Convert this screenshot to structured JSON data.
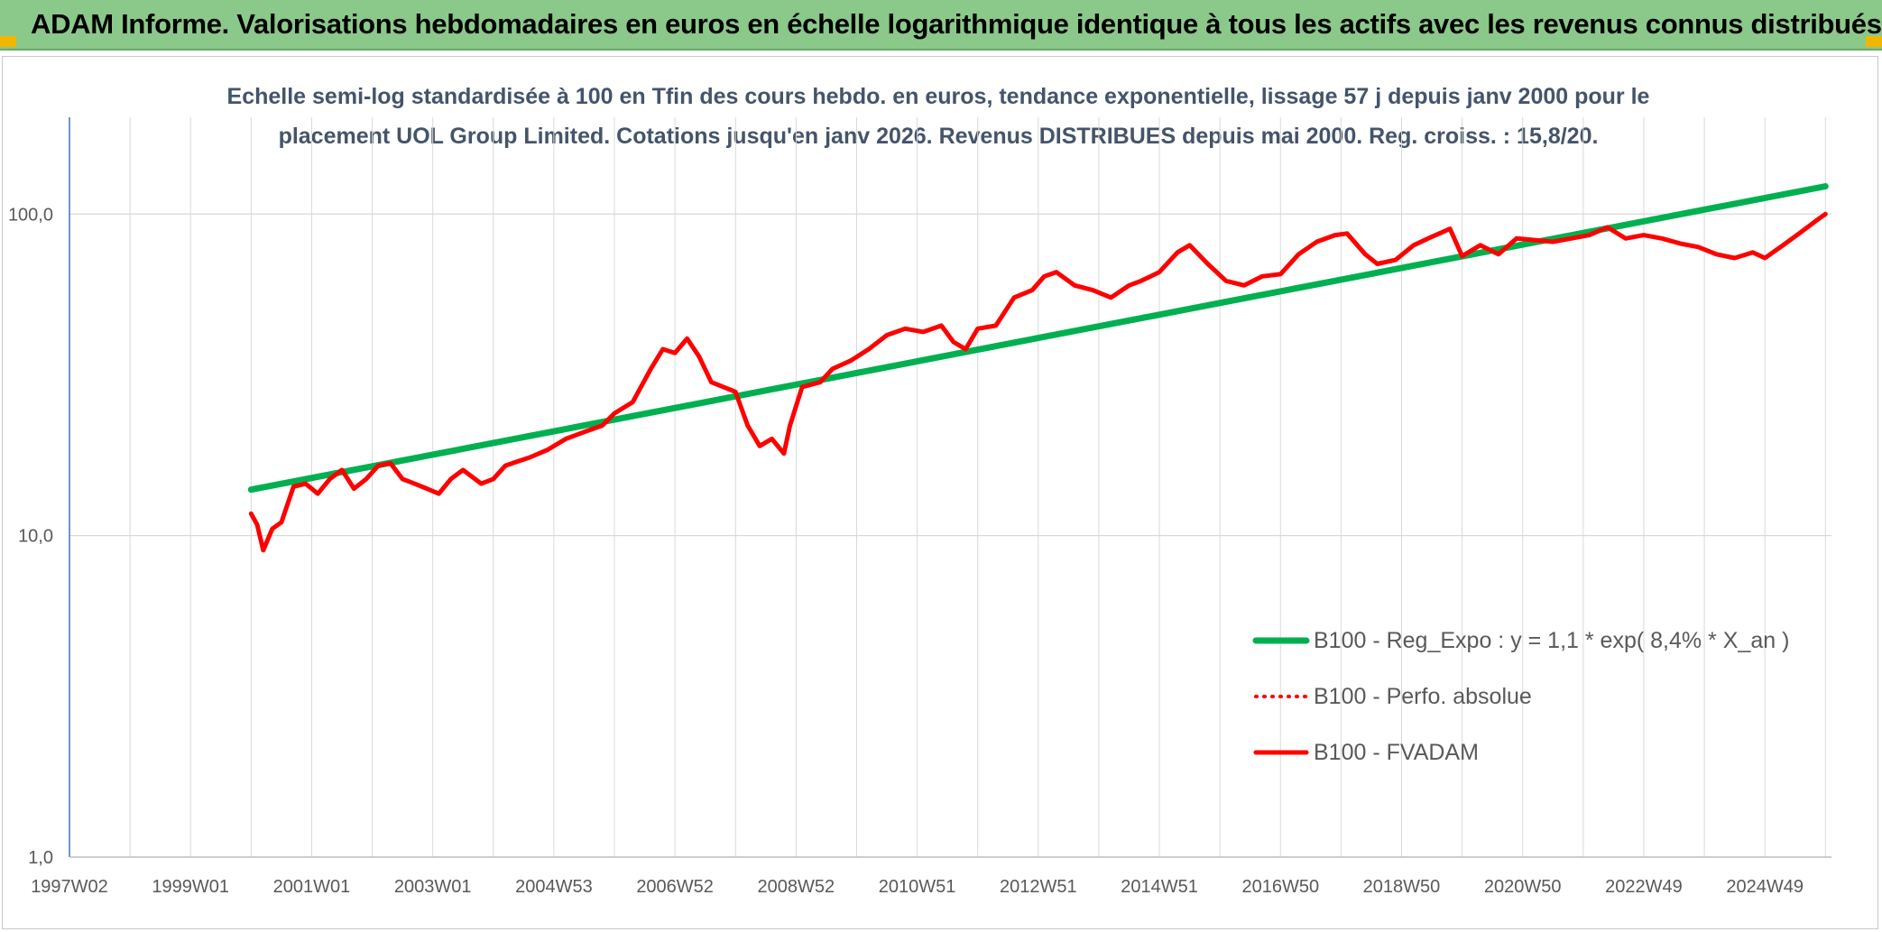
{
  "header": {
    "title": "ADAM Informe. Valorisations hebdomadaires en euros en échelle logarithmique identique à tous les actifs avec les revenus connus distribués"
  },
  "colors": {
    "header_bg": "#8bc98a",
    "regression": "#00b050",
    "series": "#ff0000",
    "corner": "#f2b600"
  },
  "chart_data": {
    "type": "line",
    "title_lines": [
      "Echelle semi-log standardisée à 100 en Tfin des cours hebdo. en euros, tendance exponentielle, lissage 57 j depuis janv 2000 pour le",
      "placement UOL Group Limited. Cotations jusqu'en janv 2026. Revenus DISTRIBUES depuis mai 2000. Reg. croiss. : 15,8/20."
    ],
    "y_scale": "log",
    "ylim": [
      1,
      200
    ],
    "y_ticks": [
      1,
      10,
      100
    ],
    "y_tick_labels": [
      "1,0",
      "10,0",
      "100,0"
    ],
    "xlim": [
      1997.0,
      2026.1
    ],
    "x_ticks": [
      1997.0,
      1999.0,
      2001.0,
      2003.0,
      2005.0,
      2007.0,
      2009.0,
      2011.0,
      2013.0,
      2015.0,
      2017.0,
      2019.0,
      2021.0,
      2023.0,
      2025.0
    ],
    "x_tick_labels": [
      "1997W02",
      "1999W01",
      "2001W01",
      "2003W01",
      "2004W53",
      "2006W52",
      "2008W52",
      "2010W51",
      "2012W51",
      "2014W51",
      "2016W50",
      "2018W50",
      "2020W50",
      "2022W49",
      "2024W49"
    ],
    "grid": true,
    "legend_position": "bottom-right",
    "series": [
      {
        "name": "B100 - Reg_Expo : y = 1,1 * exp( 8,4% *  X_an )",
        "style": "solid-thick",
        "color": "#00b050",
        "x": [
          2000.0,
          2026.0
        ],
        "y": [
          13.9,
          122
        ]
      },
      {
        "name": "B100 - Perfo. absolue",
        "style": "dotted",
        "color": "#ff0000",
        "x": [],
        "y": []
      },
      {
        "name": "B100 - FVADAM",
        "style": "solid",
        "color": "#ff0000",
        "x": [
          2000.0,
          2000.1,
          2000.2,
          2000.35,
          2000.5,
          2000.7,
          2000.9,
          2001.1,
          2001.3,
          2001.5,
          2001.7,
          2001.9,
          2002.1,
          2002.3,
          2002.5,
          2002.7,
          2002.9,
          2003.1,
          2003.3,
          2003.5,
          2003.8,
          2004.0,
          2004.2,
          2004.4,
          2004.6,
          2004.9,
          2005.2,
          2005.5,
          2005.8,
          2006.0,
          2006.3,
          2006.6,
          2006.8,
          2007.0,
          2007.2,
          2007.4,
          2007.6,
          2007.8,
          2008.0,
          2008.2,
          2008.4,
          2008.6,
          2008.8,
          2008.9,
          2009.1,
          2009.4,
          2009.6,
          2009.9,
          2010.2,
          2010.5,
          2010.8,
          2011.1,
          2011.4,
          2011.6,
          2011.8,
          2012.0,
          2012.3,
          2012.6,
          2012.9,
          2013.1,
          2013.3,
          2013.6,
          2013.9,
          2014.2,
          2014.5,
          2014.7,
          2015.0,
          2015.3,
          2015.5,
          2015.8,
          2016.1,
          2016.4,
          2016.7,
          2017.0,
          2017.3,
          2017.6,
          2017.9,
          2018.1,
          2018.4,
          2018.6,
          2018.9,
          2019.2,
          2019.5,
          2019.8,
          2020.0,
          2020.3,
          2020.6,
          2020.9,
          2021.2,
          2021.5,
          2021.8,
          2022.1,
          2022.4,
          2022.7,
          2023.0,
          2023.3,
          2023.6,
          2023.9,
          2024.2,
          2024.5,
          2024.8,
          2025.0,
          2025.3,
          2025.6,
          2025.9,
          2026.0
        ],
        "y": [
          11.7,
          10.8,
          9.0,
          10.5,
          11.0,
          14.2,
          14.5,
          13.5,
          15.0,
          16.0,
          14.0,
          15.0,
          16.5,
          16.8,
          15.0,
          14.5,
          14.0,
          13.5,
          15.0,
          16.0,
          14.5,
          15.0,
          16.5,
          17.0,
          17.5,
          18.5,
          20.0,
          21.0,
          22.0,
          24.0,
          26.0,
          33.0,
          38.0,
          37.0,
          41.0,
          36.0,
          30.0,
          29.0,
          28.0,
          22.0,
          19.0,
          20.0,
          18.0,
          22.0,
          29.0,
          30.0,
          33.0,
          35.0,
          38.0,
          42.0,
          44.0,
          43.0,
          45.0,
          40.0,
          38.0,
          44.0,
          45.0,
          55.0,
          58.0,
          64.0,
          66.0,
          60.0,
          58.0,
          55.0,
          60.0,
          62.0,
          66.0,
          76.0,
          80.0,
          70.0,
          62.0,
          60.0,
          64.0,
          65.0,
          75.0,
          82.0,
          86.0,
          87.0,
          75.0,
          70.0,
          72.0,
          80.0,
          85.0,
          90.0,
          74.0,
          80.0,
          75.0,
          84.0,
          83.0,
          82.0,
          84.0,
          86.0,
          91.0,
          84.0,
          86.0,
          84.0,
          81.0,
          79.0,
          75.0,
          73.0,
          76.0,
          73.0,
          80.0,
          88.0,
          97.0,
          100.0
        ]
      }
    ]
  }
}
